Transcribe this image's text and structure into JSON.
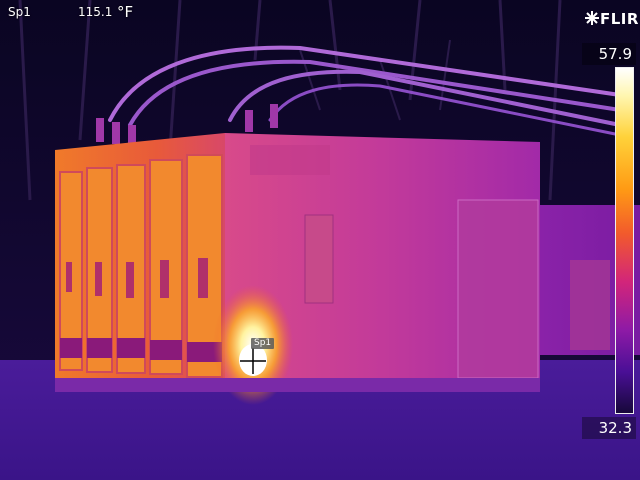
{
  "spot_meter": {
    "name": "Sp1",
    "value": "115.1",
    "unit": "°F"
  },
  "brand": {
    "logo_text": "FLIR"
  },
  "temperature_scale": {
    "max": "57.9",
    "min": "32.3"
  },
  "spot_marker": {
    "label": "Sp1"
  },
  "colors": {
    "palette": "iron",
    "background": "#140a3a",
    "hot": "#ffffff",
    "cold": "#17083a"
  }
}
